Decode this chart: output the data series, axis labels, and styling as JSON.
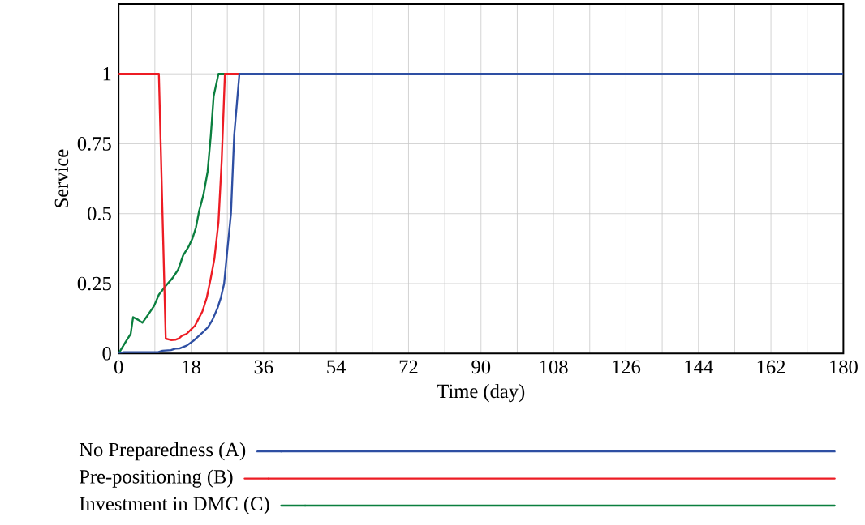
{
  "chart_data": {
    "type": "line",
    "xlabel": "Time (day)",
    "ylabel": "Service",
    "xlim": [
      0,
      180
    ],
    "ylim": [
      0,
      1.25
    ],
    "xticks": [
      0,
      {
        "value": 9,
        "label": null
      },
      18,
      {
        "value": 27,
        "label": null
      },
      36,
      {
        "value": 45,
        "label": null
      },
      54,
      {
        "value": 63,
        "label": null
      },
      72,
      {
        "value": 81,
        "label": null
      },
      90,
      {
        "value": 99,
        "label": null
      },
      108,
      {
        "value": 117,
        "label": null
      },
      126,
      {
        "value": 135,
        "label": null
      },
      144,
      {
        "value": 153,
        "label": null
      },
      162,
      {
        "value": 171,
        "label": null
      },
      180
    ],
    "yticks": [
      0,
      0.25,
      0.5,
      0.75,
      1
    ],
    "grid": true,
    "legend": "bottom",
    "line_style": "solid",
    "series": [
      {
        "name": "No Preparedness (A)",
        "color": "#2e4fa3",
        "x": [
          0,
          1.3,
          9.8,
          10.9,
          13,
          14.1,
          15.1,
          16.9,
          18.8,
          20.8,
          22.2,
          23.3,
          24.5,
          25.4,
          26.2,
          27,
          27.9,
          28.7,
          30,
          180
        ],
        "values": [
          0,
          0.005,
          0.005,
          0.01,
          0.012,
          0.017,
          0.018,
          0.028,
          0.048,
          0.074,
          0.094,
          0.12,
          0.16,
          0.2,
          0.25,
          0.37,
          0.5,
          0.78,
          1,
          1
        ]
      },
      {
        "name": "Pre-positioning (B)",
        "color": "#ed1c24",
        "x": [
          0,
          10,
          11.7,
          13,
          14.1,
          15,
          15.8,
          16.8,
          18,
          19,
          19.7,
          20.8,
          21.9,
          22.9,
          23.8,
          24.8,
          25.6,
          26.4,
          30
        ],
        "values": [
          1,
          1,
          0.053,
          0.048,
          0.049,
          0.054,
          0.064,
          0.069,
          0.086,
          0.1,
          0.12,
          0.15,
          0.2,
          0.27,
          0.34,
          0.47,
          0.69,
          1,
          1
        ]
      },
      {
        "name": "Investment in DMC (C)",
        "color": "#0b7f3f",
        "x": [
          0,
          1.7,
          3,
          3.6,
          4.9,
          5.9,
          7.4,
          8.8,
          10,
          11.6,
          13.4,
          14.8,
          16,
          17.3,
          18.3,
          19.2,
          20,
          21.1,
          22.1,
          22.9,
          23.6,
          24.8,
          26.4
        ],
        "values": [
          0,
          0.04,
          0.07,
          0.13,
          0.12,
          0.11,
          0.14,
          0.17,
          0.21,
          0.24,
          0.27,
          0.3,
          0.35,
          0.38,
          0.41,
          0.45,
          0.51,
          0.57,
          0.65,
          0.78,
          0.92,
          1,
          1
        ]
      }
    ]
  }
}
